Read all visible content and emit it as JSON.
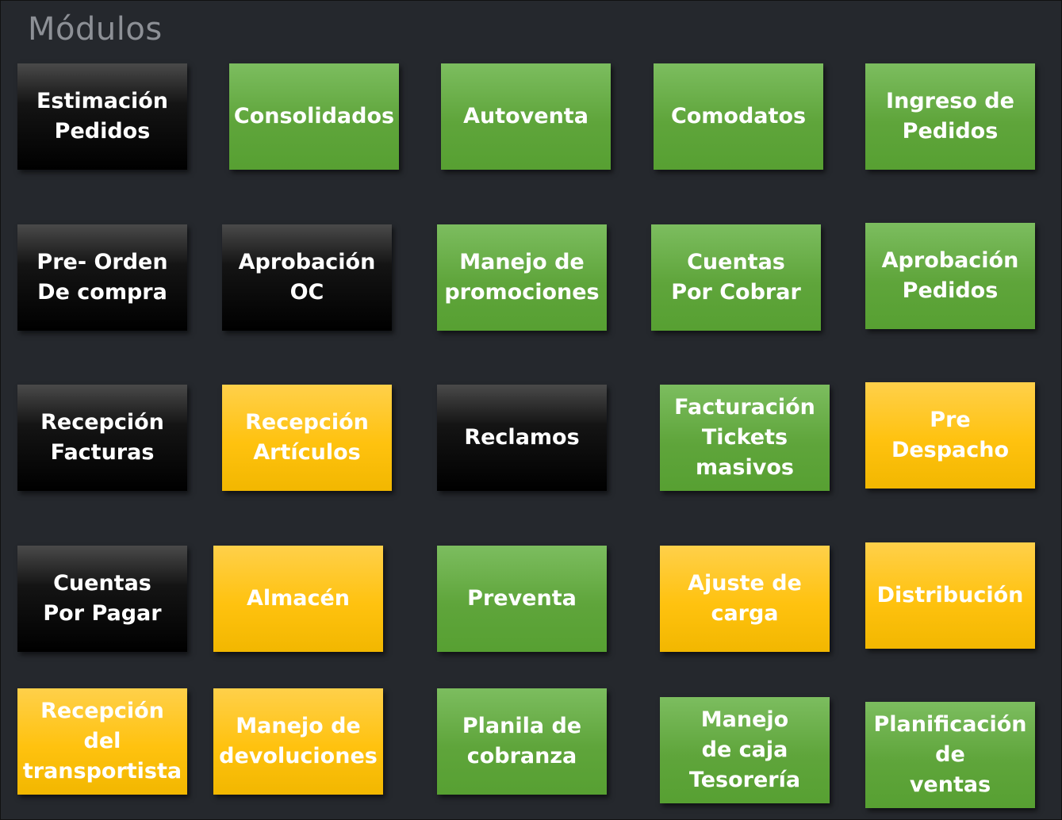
{
  "page": {
    "title": "Módulos"
  },
  "tiles": [
    {
      "id": "estimacion-pedidos",
      "label": "Estimación\nPedidos",
      "color": "black"
    },
    {
      "id": "consolidados",
      "label": "Consolidados",
      "color": "green"
    },
    {
      "id": "autoventa",
      "label": "Autoventa",
      "color": "green"
    },
    {
      "id": "comodatos",
      "label": "Comodatos",
      "color": "green"
    },
    {
      "id": "ingreso-de-pedidos",
      "label": "Ingreso de\nPedidos",
      "color": "green"
    },
    {
      "id": "pre-orden-de-compra",
      "label": "Pre- Orden\nDe compra",
      "color": "black"
    },
    {
      "id": "aprobacion-oc",
      "label": "Aprobación\nOC",
      "color": "black"
    },
    {
      "id": "manejo-de-promociones",
      "label": "Manejo de\npromociones",
      "color": "green"
    },
    {
      "id": "cuentas-por-cobrar",
      "label": "Cuentas\nPor Cobrar",
      "color": "green"
    },
    {
      "id": "aprobacion-pedidos",
      "label": "Aprobación\nPedidos",
      "color": "green"
    },
    {
      "id": "recepcion-facturas",
      "label": "Recepción\nFacturas",
      "color": "black"
    },
    {
      "id": "recepcion-articulos",
      "label": "Recepción\nArtículos",
      "color": "yellow"
    },
    {
      "id": "reclamos",
      "label": "Reclamos",
      "color": "black"
    },
    {
      "id": "facturacion-tickets-masivos",
      "label": "Facturación\nTickets\nmasivos",
      "color": "green"
    },
    {
      "id": "pre-despacho",
      "label": "Pre\nDespacho",
      "color": "yellow"
    },
    {
      "id": "cuentas-por-pagar",
      "label": "Cuentas\nPor Pagar",
      "color": "black"
    },
    {
      "id": "almacen",
      "label": "Almacén",
      "color": "yellow"
    },
    {
      "id": "preventa",
      "label": "Preventa",
      "color": "green"
    },
    {
      "id": "ajuste-de-carga",
      "label": "Ajuste de\ncarga",
      "color": "yellow"
    },
    {
      "id": "distribucion",
      "label": "Distribución",
      "color": "yellow"
    },
    {
      "id": "recepcion-del-transportista",
      "label": "Recepción\ndel\ntransportista",
      "color": "yellow"
    },
    {
      "id": "manejo-de-devoluciones",
      "label": "Manejo de\ndevoluciones",
      "color": "yellow"
    },
    {
      "id": "planila-de-cobranza",
      "label": "Planila de\ncobranza",
      "color": "green"
    },
    {
      "id": "manejo-de-caja-tesoreria",
      "label": "Manejo\nde caja\nTesorería",
      "color": "green"
    },
    {
      "id": "planificacion-de-ventas",
      "label": "Planificación\nde\nventas",
      "color": "green"
    }
  ]
}
